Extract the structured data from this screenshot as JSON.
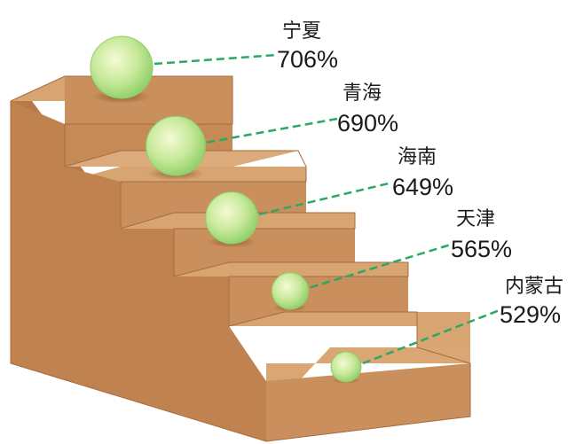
{
  "chart_data": {
    "type": "bar",
    "title": "",
    "categories": [
      "宁夏",
      "青海",
      "海南",
      "天津",
      "内蒙古"
    ],
    "values": [
      706,
      690,
      649,
      565,
      529
    ],
    "value_labels": [
      "706%",
      "690%",
      "649%",
      "565%",
      "529%"
    ],
    "unit": "%",
    "legend": "none",
    "grid": false
  },
  "colors": {
    "stair_top": "#d7a472",
    "stair_front": "#c98f5c",
    "stair_side": "#b8794a",
    "leader_line": "#2aa865",
    "ball_center": "#f4fbd6",
    "ball_edge": "#8fcf6a"
  }
}
